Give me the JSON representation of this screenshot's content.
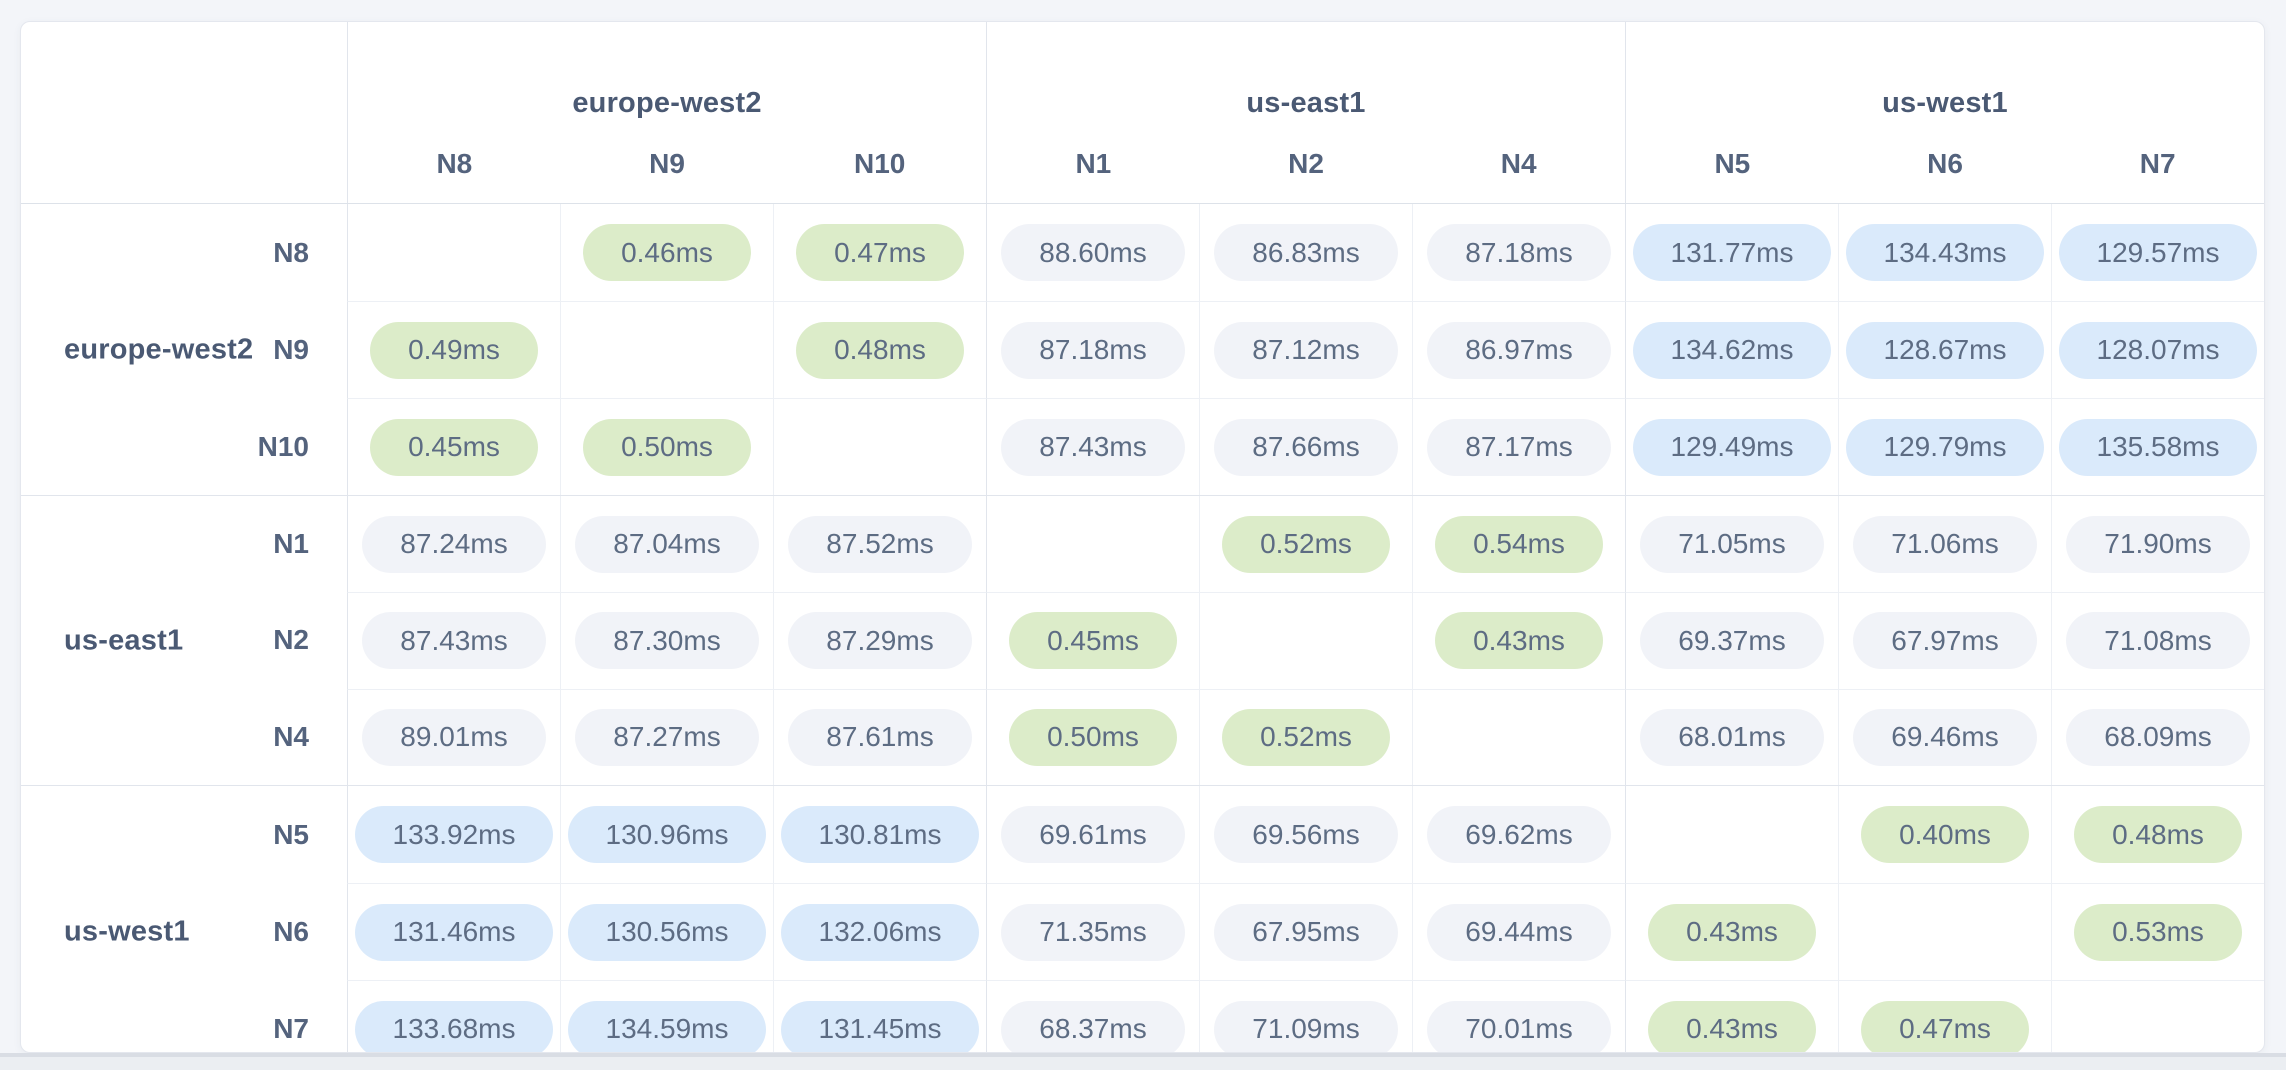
{
  "unit_suffix": "ms",
  "colors": {
    "green_pill": "#dcecc9",
    "blue_pill": "#daeafb",
    "gray_pill": "#f1f3f8",
    "pill_text": "#5d6c83",
    "header_text": "#4a5973",
    "node_text": "#54637d",
    "page_background": "#f3f5f9",
    "card_background": "#ffffff"
  },
  "tones": {
    "green_below_ms": 1,
    "blue_from_ms": 100
  },
  "chart_data": {
    "type": "heatmap",
    "title": "",
    "unit": "ms",
    "col_groups": [
      {
        "region": "europe-west2",
        "nodes": [
          "N8",
          "N9",
          "N10"
        ]
      },
      {
        "region": "us-east1",
        "nodes": [
          "N1",
          "N2",
          "N4"
        ]
      },
      {
        "region": "us-west1",
        "nodes": [
          "N5",
          "N6",
          "N7"
        ]
      }
    ],
    "row_groups": [
      {
        "region": "europe-west2",
        "nodes": [
          "N8",
          "N9",
          "N10"
        ]
      },
      {
        "region": "us-east1",
        "nodes": [
          "N1",
          "N2",
          "N4"
        ]
      },
      {
        "region": "us-west1",
        "nodes": [
          "N5",
          "N6",
          "N7"
        ]
      }
    ],
    "rows": [
      "N8",
      "N9",
      "N10",
      "N1",
      "N2",
      "N4",
      "N5",
      "N6",
      "N7"
    ],
    "cols": [
      "N8",
      "N9",
      "N10",
      "N1",
      "N2",
      "N4",
      "N5",
      "N6",
      "N7"
    ],
    "values_ms": [
      [
        null,
        0.46,
        0.47,
        88.6,
        86.83,
        87.18,
        131.77,
        134.43,
        129.57
      ],
      [
        0.49,
        null,
        0.48,
        87.18,
        87.12,
        86.97,
        134.62,
        128.67,
        128.07
      ],
      [
        0.45,
        0.5,
        null,
        87.43,
        87.66,
        87.17,
        129.49,
        129.79,
        135.58
      ],
      [
        87.24,
        87.04,
        87.52,
        null,
        0.52,
        0.54,
        71.05,
        71.06,
        71.9
      ],
      [
        87.43,
        87.3,
        87.29,
        0.45,
        null,
        0.43,
        69.37,
        67.97,
        71.08
      ],
      [
        89.01,
        87.27,
        87.61,
        0.5,
        0.52,
        null,
        68.01,
        69.46,
        68.09
      ],
      [
        133.92,
        130.96,
        130.81,
        69.61,
        69.56,
        69.62,
        null,
        0.4,
        0.48
      ],
      [
        131.46,
        130.56,
        132.06,
        71.35,
        67.95,
        69.44,
        0.43,
        null,
        0.53
      ],
      [
        133.68,
        134.59,
        131.45,
        68.37,
        71.09,
        70.01,
        0.43,
        0.47,
        null
      ]
    ]
  }
}
